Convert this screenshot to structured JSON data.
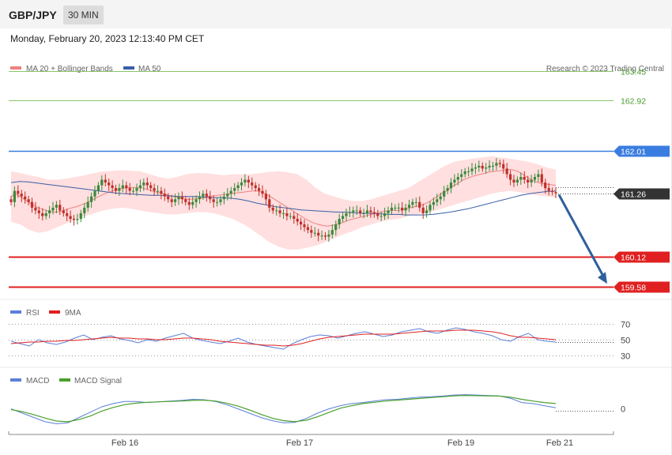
{
  "header": {
    "symbol": "GBP/JPY",
    "timeframe": "30 MIN"
  },
  "datetime": "Monday, February 20, 2023 12:13:40 PM CET",
  "watermark": "Research © 2023 Trading Central",
  "colors": {
    "ma20": "#f08080",
    "ma50": "#3a5fa8",
    "bands": "#ffd9d9",
    "resistance_green": "#8cc56a",
    "resistance_blue": "#3a7de0",
    "support_red": "#e02020",
    "last_price": "#333333",
    "rsi": "#5b7fd8",
    "rsi_ma": "#e02020",
    "macd": "#5b7fd8",
    "macd_signal": "#4aa02c",
    "up_candle": "#3a8a3a",
    "down_candle": "#c0302a",
    "arrow": "#2f5f9e"
  },
  "chart_data": [
    {
      "type": "candlestick",
      "title": "",
      "legend": [
        "MA 20 + Bollinger Bands",
        "MA 50"
      ],
      "x_labels": [
        "Feb 16",
        "Feb 17",
        "Feb 19",
        "Feb 21"
      ],
      "ylim": [
        159.4,
        163.7
      ],
      "levels": [
        {
          "value": 163.45,
          "label": "163.45",
          "role": "resistance",
          "color": "green"
        },
        {
          "value": 162.92,
          "label": "162.92",
          "role": "resistance",
          "color": "green"
        },
        {
          "value": 162.01,
          "label": "162.01",
          "role": "resistance",
          "color": "blue"
        },
        {
          "value": 161.26,
          "label": "161.26",
          "role": "last",
          "color": "dark"
        },
        {
          "value": 160.12,
          "label": "160.12",
          "role": "support",
          "color": "red"
        },
        {
          "value": 159.58,
          "label": "159.58",
          "role": "support",
          "color": "red"
        }
      ],
      "close": [
        161.1,
        161.3,
        161.25,
        161.2,
        161.15,
        161.1,
        161.0,
        160.95,
        160.9,
        160.85,
        160.9,
        160.95,
        161.0,
        161.05,
        160.95,
        160.9,
        160.85,
        160.8,
        160.78,
        160.8,
        160.9,
        161.0,
        161.1,
        161.2,
        161.3,
        161.4,
        161.5,
        161.45,
        161.4,
        161.35,
        161.3,
        161.35,
        161.4,
        161.35,
        161.3,
        161.3,
        161.35,
        161.4,
        161.45,
        161.4,
        161.35,
        161.3,
        161.3,
        161.25,
        161.2,
        161.15,
        161.1,
        161.15,
        161.2,
        161.15,
        161.1,
        161.05,
        161.1,
        161.15,
        161.2,
        161.25,
        161.2,
        161.15,
        161.1,
        161.1,
        161.15,
        161.2,
        161.25,
        161.3,
        161.35,
        161.4,
        161.45,
        161.5,
        161.45,
        161.4,
        161.35,
        161.3,
        161.25,
        161.15,
        161.0,
        160.95,
        160.95,
        160.9,
        160.9,
        160.85,
        160.85,
        160.8,
        160.75,
        160.7,
        160.65,
        160.6,
        160.55,
        160.55,
        160.5,
        160.5,
        160.48,
        160.52,
        160.6,
        160.7,
        160.8,
        160.85,
        160.9,
        160.92,
        160.95,
        160.95,
        160.9,
        160.9,
        160.95,
        160.92,
        160.9,
        160.85,
        160.85,
        160.9,
        160.95,
        161.0,
        161.0,
        161.0,
        160.95,
        161.0,
        161.05,
        161.1,
        161.1,
        161.0,
        160.9,
        160.95,
        161.05,
        161.1,
        161.15,
        161.2,
        161.3,
        161.35,
        161.45,
        161.5,
        161.55,
        161.6,
        161.65,
        161.65,
        161.7,
        161.72,
        161.75,
        161.7,
        161.72,
        161.75,
        161.75,
        161.8,
        161.78,
        161.7,
        161.6,
        161.5,
        161.45,
        161.5,
        161.55,
        161.5,
        161.45,
        161.5,
        161.55,
        161.6,
        161.45,
        161.35,
        161.3,
        161.28,
        161.26
      ],
      "ma20": [
        161.2,
        161.25,
        161.2,
        161.15,
        161.1,
        161.05,
        161.0,
        160.98,
        160.95,
        160.93,
        160.92,
        160.93,
        160.95,
        160.98,
        161.0,
        161.02,
        161.05,
        161.08,
        161.12,
        161.16,
        161.2,
        161.24,
        161.27,
        161.3,
        161.32,
        161.34,
        161.35,
        161.36,
        161.36,
        161.36,
        161.35,
        161.33,
        161.3,
        161.28,
        161.26,
        161.24,
        161.22,
        161.2,
        161.18,
        161.16,
        161.15,
        161.15,
        161.16,
        161.17,
        161.18,
        161.2,
        161.21,
        161.22,
        161.23,
        161.24,
        161.25,
        161.26,
        161.27,
        161.28,
        161.29,
        161.3,
        161.3,
        161.28,
        161.24,
        161.2,
        161.15,
        161.1,
        161.05,
        161.0,
        160.95,
        160.9,
        160.85,
        160.8,
        160.76,
        160.72,
        160.7,
        160.68,
        160.67,
        160.68,
        160.7,
        160.72,
        160.75,
        160.78,
        160.8,
        160.82,
        160.84,
        160.86,
        160.88,
        160.9,
        160.92,
        160.93,
        160.94,
        160.95,
        160.95,
        160.96,
        160.98,
        161.0,
        161.02,
        161.04,
        161.06,
        161.1,
        161.15,
        161.2,
        161.25,
        161.3,
        161.35,
        161.4,
        161.45,
        161.5,
        161.53,
        161.56,
        161.58,
        161.6,
        161.62,
        161.64,
        161.65,
        161.66,
        161.67,
        161.68,
        161.68,
        161.66,
        161.62,
        161.57,
        161.52,
        161.48,
        161.45,
        161.43,
        161.42,
        161.41,
        161.4
      ],
      "ma50": [
        161.45,
        161.47,
        161.46,
        161.44,
        161.42,
        161.4,
        161.38,
        161.36,
        161.34,
        161.32,
        161.3,
        161.28,
        161.26,
        161.25,
        161.24,
        161.23,
        161.22,
        161.22,
        161.21,
        161.2,
        161.2,
        161.2,
        161.19,
        161.18,
        161.18,
        161.17,
        161.15,
        161.12,
        161.08,
        161.05,
        161.02,
        161.0,
        160.98,
        160.96,
        160.95,
        160.94,
        160.93,
        160.92,
        160.92,
        160.91,
        160.9,
        160.9,
        160.89,
        160.88,
        160.88,
        160.87,
        160.87,
        160.87,
        160.88,
        160.9,
        160.92,
        160.95,
        160.98,
        161.02,
        161.06,
        161.1,
        161.14,
        161.18,
        161.22,
        161.25,
        161.27,
        161.29,
        161.3
      ],
      "bb_upper": [
        161.65,
        161.62,
        161.58,
        161.55,
        161.5,
        161.5,
        161.52,
        161.55,
        161.58,
        161.62,
        161.65,
        161.66,
        161.67,
        161.66,
        161.65,
        161.6,
        161.55,
        161.52,
        161.55,
        161.6,
        161.62,
        161.62,
        161.6,
        161.58,
        161.6,
        161.6,
        161.6,
        161.62,
        161.64,
        161.65,
        161.63,
        161.6,
        161.5,
        161.35,
        161.25,
        161.2,
        161.15,
        161.12,
        161.12,
        161.15,
        161.2,
        161.25,
        161.3,
        161.35,
        161.45,
        161.55,
        161.65,
        161.75,
        161.82,
        161.85,
        161.88,
        161.9,
        161.92,
        161.9,
        161.88,
        161.85,
        161.82,
        161.78,
        161.72,
        161.68
      ],
      "bb_lower": [
        160.75,
        160.7,
        160.6,
        160.55,
        160.58,
        160.65,
        160.72,
        160.8,
        160.85,
        160.9,
        160.95,
        160.98,
        161.0,
        160.98,
        160.95,
        160.92,
        160.9,
        160.88,
        160.88,
        160.9,
        160.92,
        160.92,
        160.9,
        160.85,
        160.8,
        160.72,
        160.62,
        160.5,
        160.38,
        160.3,
        160.25,
        160.25,
        160.28,
        160.32,
        160.38,
        160.45,
        160.52,
        160.58,
        160.65,
        160.7,
        160.75,
        160.78,
        160.8,
        160.85,
        160.88,
        160.9,
        160.95,
        161.0,
        161.05,
        161.1,
        161.15,
        161.2,
        161.25,
        161.28,
        161.3,
        161.28,
        161.25,
        161.22,
        161.2,
        161.18
      ],
      "projection": {
        "from": 161.26,
        "to": 159.58
      }
    },
    {
      "type": "line",
      "title": "",
      "legend": [
        "RSI",
        "9MA"
      ],
      "y_ticks": [
        "70",
        "50",
        "30"
      ],
      "ylim": [
        20,
        80
      ],
      "series": [
        {
          "name": "RSI",
          "values": [
            48,
            45,
            42,
            50,
            46,
            44,
            47,
            52,
            56,
            50,
            53,
            55,
            51,
            49,
            46,
            50,
            48,
            52,
            55,
            58,
            52,
            49,
            47,
            45,
            48,
            52,
            47,
            44,
            42,
            40,
            38,
            45,
            50,
            54,
            56,
            55,
            52,
            55,
            58,
            60,
            57,
            54,
            56,
            60,
            62,
            64,
            60,
            58,
            62,
            65,
            63,
            60,
            58,
            55,
            50,
            48,
            54,
            58,
            50,
            48,
            47
          ]
        },
        {
          "name": "9MA",
          "values": [
            45,
            46,
            47,
            47,
            48,
            48,
            49,
            49,
            50,
            51,
            52,
            53,
            52,
            52,
            51,
            51,
            50,
            50,
            51,
            52,
            52,
            51,
            50,
            48,
            47,
            46,
            45,
            44,
            43,
            43,
            42,
            43,
            45,
            48,
            51,
            53,
            54,
            55,
            56,
            57,
            57,
            57,
            57,
            58,
            59,
            60,
            61,
            61,
            61,
            62,
            62,
            62,
            61,
            60,
            58,
            55,
            53,
            53,
            52,
            51,
            50
          ]
        }
      ]
    },
    {
      "type": "line",
      "title": "",
      "legend": [
        "MACD",
        "MACD Signal"
      ],
      "y_ticks": [
        "0"
      ],
      "ylim": [
        -1,
        1
      ],
      "series": [
        {
          "name": "MACD",
          "values": [
            0.05,
            -0.15,
            -0.35,
            -0.55,
            -0.65,
            -0.6,
            -0.35,
            -0.1,
            0.15,
            0.3,
            0.4,
            0.4,
            0.35,
            0.38,
            0.42,
            0.45,
            0.5,
            0.48,
            0.4,
            0.25,
            0.05,
            -0.15,
            -0.35,
            -0.5,
            -0.6,
            -0.58,
            -0.4,
            -0.15,
            0.05,
            0.2,
            0.3,
            0.35,
            0.42,
            0.48,
            0.5,
            0.55,
            0.6,
            0.62,
            0.65,
            0.7,
            0.72,
            0.7,
            0.68,
            0.66,
            0.55,
            0.35,
            0.3,
            0.2,
            0.1
          ]
        },
        {
          "name": "MACD Signal",
          "values": [
            0.02,
            -0.08,
            -0.22,
            -0.38,
            -0.52,
            -0.55,
            -0.45,
            -0.28,
            -0.05,
            0.12,
            0.25,
            0.32,
            0.36,
            0.38,
            0.4,
            0.42,
            0.45,
            0.46,
            0.42,
            0.32,
            0.18,
            0.0,
            -0.2,
            -0.38,
            -0.5,
            -0.55,
            -0.48,
            -0.32,
            -0.12,
            0.08,
            0.2,
            0.3,
            0.36,
            0.42,
            0.46,
            0.5,
            0.54,
            0.58,
            0.62,
            0.66,
            0.68,
            0.67,
            0.66,
            0.65,
            0.6,
            0.5,
            0.42,
            0.35,
            0.3
          ]
        }
      ]
    }
  ]
}
